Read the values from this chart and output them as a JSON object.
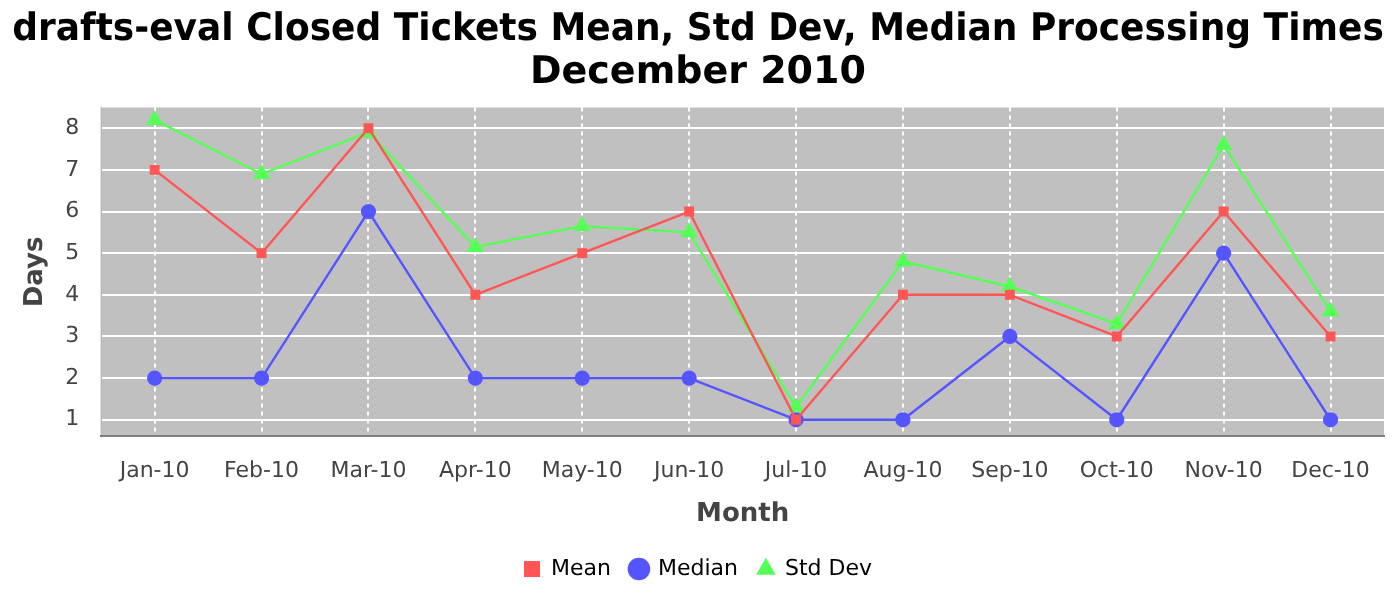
{
  "chart_data": {
    "type": "line",
    "title": "drafts-eval Closed Tickets Mean, Std Dev, Median Processing Times\nDecember 2010",
    "xlabel": "Month",
    "ylabel": "Days",
    "categories": [
      "Jan-10",
      "Feb-10",
      "Mar-10",
      "Apr-10",
      "May-10",
      "Jun-10",
      "Jul-10",
      "Aug-10",
      "Sep-10",
      "Oct-10",
      "Nov-10",
      "Dec-10"
    ],
    "series": [
      {
        "name": "Mean",
        "color": "#ff5555",
        "marker": "square",
        "values": [
          7,
          5,
          8,
          4,
          5,
          6,
          1,
          4,
          4,
          3,
          6,
          3
        ]
      },
      {
        "name": "Median",
        "color": "#5555ff",
        "marker": "circle",
        "values": [
          2,
          2,
          6,
          2,
          2,
          2,
          1,
          1,
          3,
          1,
          5,
          1
        ]
      },
      {
        "name": "Std Dev",
        "color": "#55ff55",
        "marker": "triangle",
        "values": [
          8.2,
          6.9,
          7.9,
          5.15,
          5.65,
          5.5,
          1.3,
          4.8,
          4.2,
          3.3,
          7.6,
          3.6
        ]
      }
    ],
    "ylim": [
      0.6,
      8.5
    ],
    "yticks": [
      1,
      2,
      3,
      4,
      5,
      6,
      7,
      8
    ],
    "grid": true,
    "legend": "bottom"
  }
}
